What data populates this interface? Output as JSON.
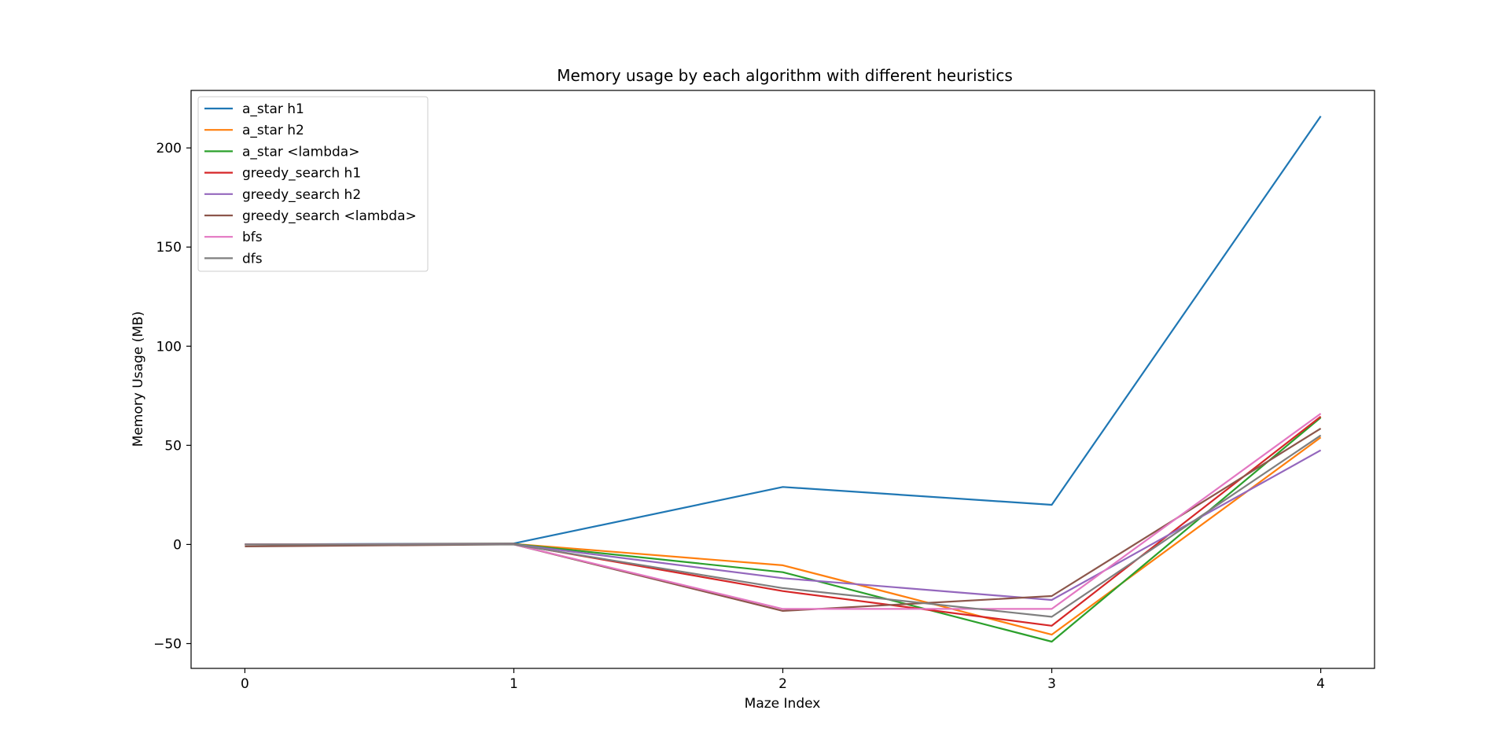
{
  "chart_data": {
    "type": "line",
    "title": "Memory usage by each algorithm with different heuristics",
    "xlabel": "Maze Index",
    "ylabel": "Memory Usage (MB)",
    "x": [
      0,
      1,
      2,
      3,
      4
    ],
    "xticks": [
      "0",
      "1",
      "2",
      "3",
      "4"
    ],
    "yticks": [
      "−50",
      "0",
      "50",
      "100",
      "150",
      "200"
    ],
    "ytick_values": [
      -50,
      0,
      50,
      100,
      150,
      200
    ],
    "xlim": [
      -0.2,
      4.2
    ],
    "ylim": [
      -62.5,
      229
    ],
    "grid": false,
    "legend_position": "top-left",
    "series": [
      {
        "name": "a_star h1",
        "color": "#1f77b4",
        "values": [
          0,
          0.5,
          29,
          20,
          216
        ]
      },
      {
        "name": "a_star h2",
        "color": "#ff7f0e",
        "values": [
          0,
          0.3,
          -10.5,
          -45.5,
          54
        ]
      },
      {
        "name": "a_star <lambda>",
        "color": "#2ca02c",
        "values": [
          0,
          0.2,
          -14,
          -49,
          64
        ]
      },
      {
        "name": "greedy_search h1",
        "color": "#d62728",
        "values": [
          0,
          0.2,
          -23.5,
          -41,
          64.5
        ]
      },
      {
        "name": "greedy_search h2",
        "color": "#9467bd",
        "values": [
          0,
          0.1,
          -17,
          -28,
          47.5
        ]
      },
      {
        "name": "greedy_search <lambda>",
        "color": "#8c564b",
        "values": [
          -1,
          0,
          -33.5,
          -26,
          58.5
        ]
      },
      {
        "name": "bfs",
        "color": "#e377c2",
        "values": [
          0,
          0,
          -32.5,
          -32.5,
          66
        ]
      },
      {
        "name": "dfs",
        "color": "#7f7f7f",
        "values": [
          0,
          0,
          -22,
          -36.5,
          55
        ]
      }
    ]
  }
}
